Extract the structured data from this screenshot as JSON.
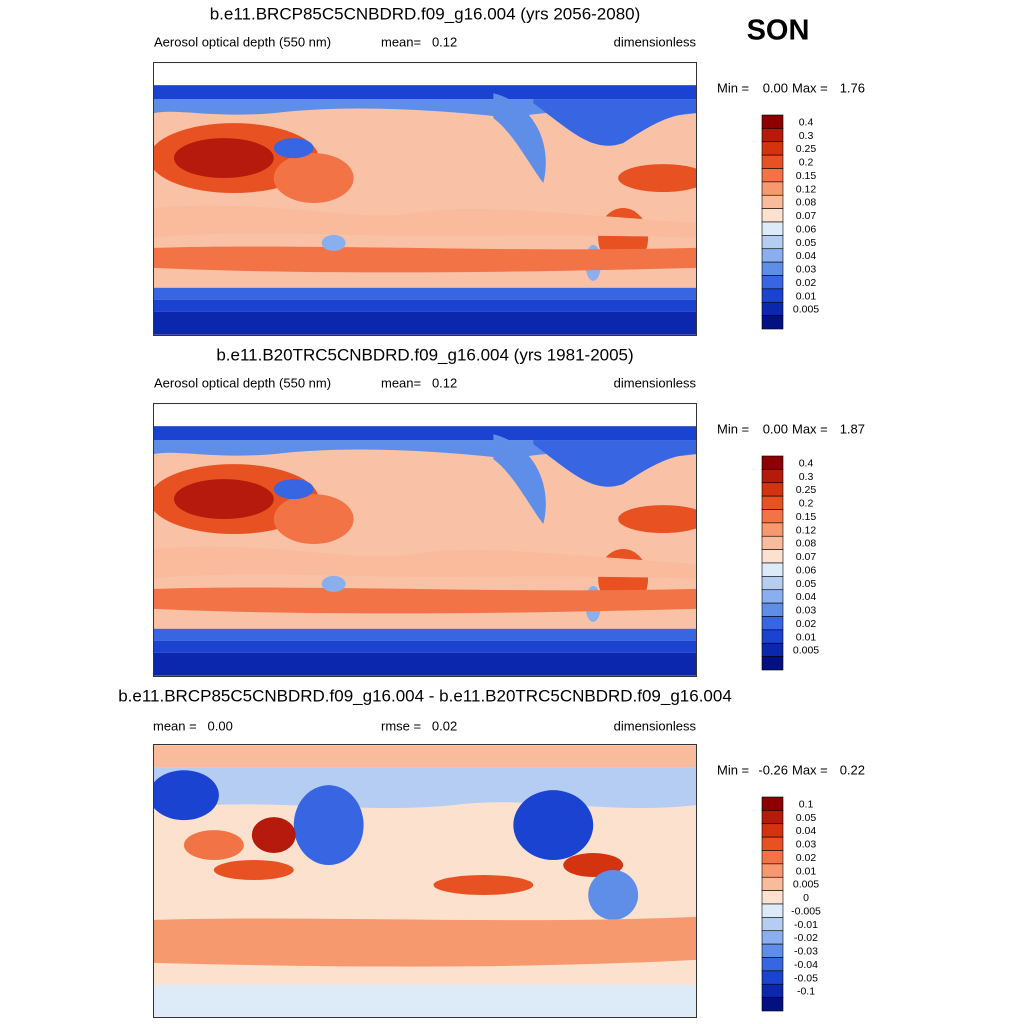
{
  "season": "SON",
  "panels": [
    {
      "title": "b.e11.BRCP85C5CNBDRD.f09_g16.004 (yrs 2056-2080)",
      "left": "Aerosol optical depth (550 nm)",
      "center": "mean=   0.12",
      "right": "dimensionless",
      "min_label": "Min =",
      "min": "0.00",
      "max_label": "Max =",
      "max": "1.76",
      "colorbar": {
        "labels": [
          0.4,
          0.3,
          0.25,
          0.2,
          0.15,
          0.12,
          0.08,
          0.07,
          0.06,
          0.05,
          0.04,
          0.03,
          0.02,
          0.01,
          0.005
        ],
        "colors": [
          "#8c0000",
          "#b51a0c",
          "#d3340f",
          "#e85222",
          "#f27446",
          "#f7996f",
          "#fabb9c",
          "#fde1cf",
          "#ddeaf8",
          "#b5cdf2",
          "#8aafef",
          "#5f8ee8",
          "#3866e2",
          "#1a43d2",
          "#0a27ad",
          "#031180"
        ]
      }
    },
    {
      "title": "b.e11.B20TRC5CNBDRD.f09_g16.004 (yrs 1981-2005)",
      "left": "Aerosol optical depth (550 nm)",
      "center": "mean=   0.12",
      "right": "dimensionless",
      "min_label": "Min =",
      "min": "0.00",
      "max_label": "Max =",
      "max": "1.87",
      "colorbar": {
        "labels": [
          0.4,
          0.3,
          0.25,
          0.2,
          0.15,
          0.12,
          0.08,
          0.07,
          0.06,
          0.05,
          0.04,
          0.03,
          0.02,
          0.01,
          0.005
        ],
        "colors": [
          "#8c0000",
          "#b51a0c",
          "#d3340f",
          "#e85222",
          "#f27446",
          "#f7996f",
          "#fabb9c",
          "#fde1cf",
          "#ddeaf8",
          "#b5cdf2",
          "#8aafef",
          "#5f8ee8",
          "#3866e2",
          "#1a43d2",
          "#0a27ad",
          "#031180"
        ]
      }
    },
    {
      "title": "b.e11.BRCP85C5CNBDRD.f09_g16.004 - b.e11.B20TRC5CNBDRD.f09_g16.004",
      "left": "mean =   0.00",
      "center": "rmse =   0.02",
      "right": "dimensionless",
      "min_label": "Min =",
      "min": "-0.26",
      "max_label": "Max =",
      "max": "0.22",
      "colorbar": {
        "labels": [
          0.1,
          0.05,
          0.04,
          0.03,
          0.02,
          0.01,
          0.005,
          0,
          -0.005,
          -0.01,
          -0.02,
          -0.03,
          -0.04,
          -0.05,
          -0.1
        ],
        "colors": [
          "#8c0000",
          "#b51a0c",
          "#d3340f",
          "#e85222",
          "#f27446",
          "#f7996f",
          "#fabb9c",
          "#fde1cf",
          "#ddeaf8",
          "#b5cdf2",
          "#8aafef",
          "#5f8ee8",
          "#3866e2",
          "#1a43d2",
          "#0a27ad",
          "#031180"
        ]
      }
    }
  ]
}
